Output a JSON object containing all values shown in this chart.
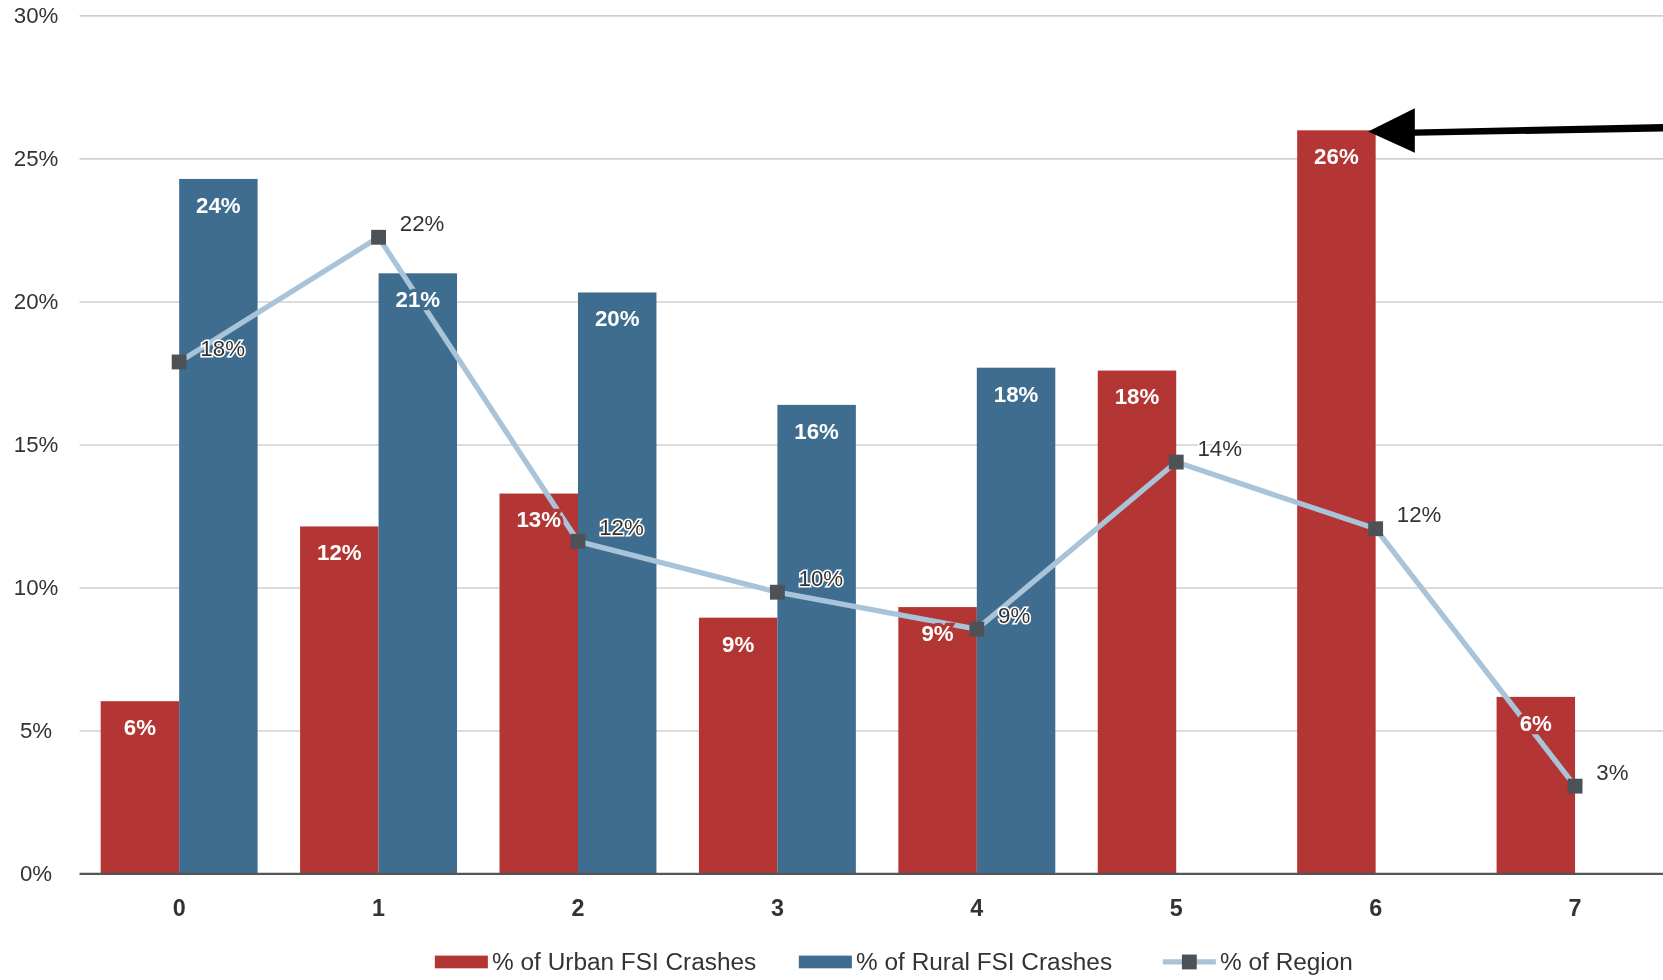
{
  "chart_data": {
    "type": "bar",
    "categories": [
      "0",
      "1",
      "2",
      "3",
      "4",
      "5",
      "6",
      "7"
    ],
    "series": [
      {
        "name": "% of Urban FSI Crashes",
        "color": "#b33534",
        "values": [
          6.04,
          12.15,
          13.3,
          8.96,
          9.33,
          17.6,
          26.0,
          6.19
        ],
        "value_labels": [
          "6%",
          "12%",
          "13%",
          "9%",
          "9%",
          "18%",
          "26%",
          "6%"
        ]
      },
      {
        "name": "% of Rural FSI Crashes",
        "color": "#3f6d8f",
        "values": [
          24.3,
          21.0,
          20.33,
          16.4,
          17.7,
          null,
          null,
          null
        ],
        "value_labels": [
          "24%",
          "21%",
          "20%",
          "16%",
          "18%",
          null,
          null,
          null
        ]
      },
      {
        "name": "% of Region",
        "type": "line",
        "color": "#a9c4d9",
        "marker": "square",
        "values": [
          17.9,
          22.26,
          11.63,
          9.85,
          8.56,
          14.4,
          12.07,
          3.07
        ],
        "value_labels": [
          "18%",
          "22%",
          "12%",
          "10%",
          "9%",
          "14%",
          "12%",
          "3%"
        ]
      }
    ],
    "ylim": [
      0,
      30
    ],
    "yticks": [
      {
        "value": 0,
        "label": "0%"
      },
      {
        "value": 5,
        "label": "5%"
      },
      {
        "value": 10,
        "label": "10%"
      },
      {
        "value": 15,
        "label": "15%"
      },
      {
        "value": 20,
        "label": "20%"
      },
      {
        "value": 25,
        "label": "25%"
      },
      {
        "value": 30,
        "label": "30%"
      }
    ],
    "grid": "y",
    "legend": "bottom"
  }
}
